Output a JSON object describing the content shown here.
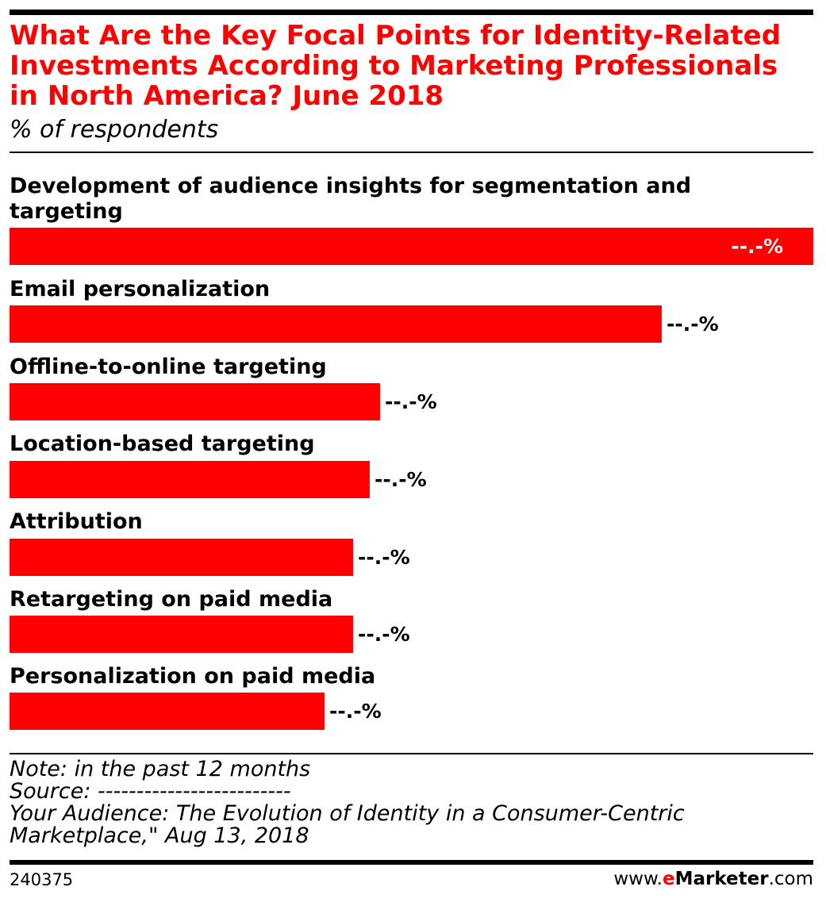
{
  "title": "What Are the Key Focal Points for Identity-Related Investments According to Marketing Professionals in North America? June 2018",
  "subtitle": "% of respondents",
  "colors": {
    "bar": "#ff0000",
    "title": "#ff0000",
    "value_text_on_bar": "#ffffff",
    "value_text": "#000000"
  },
  "chart_data": {
    "type": "bar",
    "orientation": "horizontal",
    "categories": [
      "Development of audience insights for segmentation and targeting",
      "Email personalization",
      "Offline-to-online targeting",
      "Location-based targeting",
      "Attribution",
      "Retargeting on paid media",
      "Personalization on paid media"
    ],
    "values": [
      100,
      81.1,
      46.1,
      44.8,
      42.7,
      42.7,
      39.2
    ],
    "value_labels": [
      "--.-%",
      "--.-%",
      "--.-%",
      "--.-%",
      "--.-%",
      "--.-%",
      "--.-%"
    ],
    "xlim": [
      0,
      100
    ],
    "grid": false,
    "legend": "none"
  },
  "notes": {
    "note": "Note: in the past 12 months",
    "source": "Source: -------------------------",
    "source_title": "Your Audience: The Evolution of Identity in a Consumer-Centric",
    "source_title_cont": "Marketplace,\" Aug 13, 2018"
  },
  "footer": {
    "chart_id": "240375",
    "brand_prefix": "www.",
    "brand_e": "e",
    "brand_name": "Marketer",
    "brand_suffix": ".com"
  }
}
